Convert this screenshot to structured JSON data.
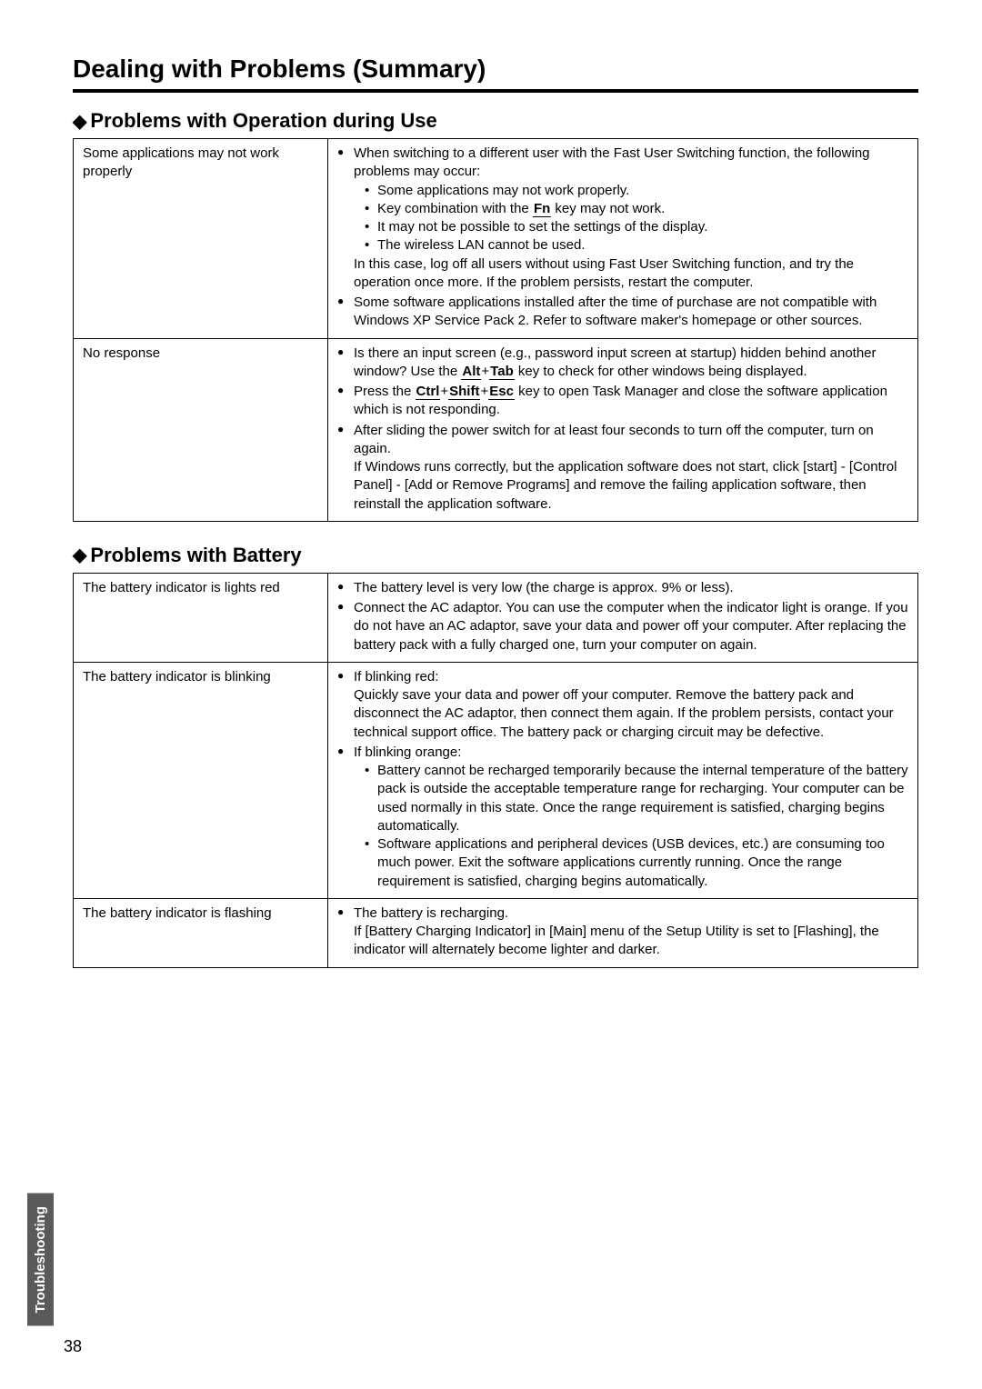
{
  "page": {
    "title": "Dealing with Problems (Summary)",
    "sideTab": "Troubleshooting",
    "pageNumber": "38"
  },
  "sections": [
    {
      "header": "Problems with Operation during Use",
      "rows": [
        {
          "issue": "Some applications may not work properly",
          "bullets": [
            {
              "lead": "When switching to a different user with the Fast User Switching function, the following problems may occur:",
              "sub": [
                "Some applications may not work properly.",
                {
                  "pre": "Key combination with the ",
                  "key": "Fn",
                  "post": " key may not work."
                },
                "It may not be possible to set the settings of the display.",
                "The wireless LAN cannot be used."
              ],
              "tail": "In this case, log off all users without using Fast User Switching function, and try the operation once more. If the problem persists, restart the computer."
            },
            {
              "lead": "Some software applications installed after the time of purchase are not compatible with Windows XP Service Pack 2. Refer to software maker's homepage or other sources."
            }
          ]
        },
        {
          "issue": "No response",
          "bullets": [
            {
              "segments": [
                {
                  "t": "Is there an input screen (e.g., password input screen at startup) hidden behind another window?  Use the "
                },
                {
                  "key": "Alt"
                },
                {
                  "t": "+"
                },
                {
                  "key": "Tab"
                },
                {
                  "t": " key to check for other windows being displayed."
                }
              ]
            },
            {
              "segments": [
                {
                  "t": "Press the "
                },
                {
                  "key": "Ctrl"
                },
                {
                  "t": "+"
                },
                {
                  "key": "Shift"
                },
                {
                  "t": "+"
                },
                {
                  "key": "Esc"
                },
                {
                  "t": " key to open Task Manager and close the software application which is not responding."
                }
              ]
            },
            {
              "lead": "After sliding the power switch for at least four seconds to turn off the computer, turn on again.",
              "tail": "If Windows runs correctly, but the application software does not start, click [start] - [Control Panel] - [Add or Remove Programs] and remove the failing application software, then reinstall the application software."
            }
          ]
        }
      ]
    },
    {
      "header": "Problems with Battery",
      "rows": [
        {
          "issue": "The battery indicator is lights red",
          "bullets": [
            {
              "lead": "The battery level is very low (the charge is approx. 9% or less)."
            },
            {
              "lead": "Connect the AC adaptor. You can use the computer when the indicator light is orange. If you do not have an AC adaptor, save your data and power off your computer. After replacing the battery pack with a fully charged one, turn your computer on again."
            }
          ]
        },
        {
          "issue": "The battery indicator is blinking",
          "bullets": [
            {
              "lead": "If blinking red:",
              "tail": "Quickly save your data and power off your computer.  Remove the battery pack and disconnect the AC adaptor, then connect them again. If the problem persists, contact your technical support office. The battery pack or charging circuit may be defective."
            },
            {
              "lead": "If blinking orange:",
              "sub": [
                "Battery cannot be recharged temporarily because the internal temperature of the battery pack is outside the acceptable temperature range for recharging. Your computer can be used normally in this state. Once the range requirement is satisfied, charging begins automatically.",
                "Software applications and peripheral devices (USB devices, etc.) are consuming too much power. Exit the software applications currently running. Once the range requirement is satisfied, charging begins automatically."
              ]
            }
          ]
        },
        {
          "issue": "The battery indicator is flashing",
          "bullets": [
            {
              "lead": "The battery is recharging.",
              "tail": "If [Battery Charging Indicator] in [Main] menu of the Setup Utility is set to [Flashing], the indicator will alternately become lighter and darker."
            }
          ]
        }
      ]
    }
  ]
}
